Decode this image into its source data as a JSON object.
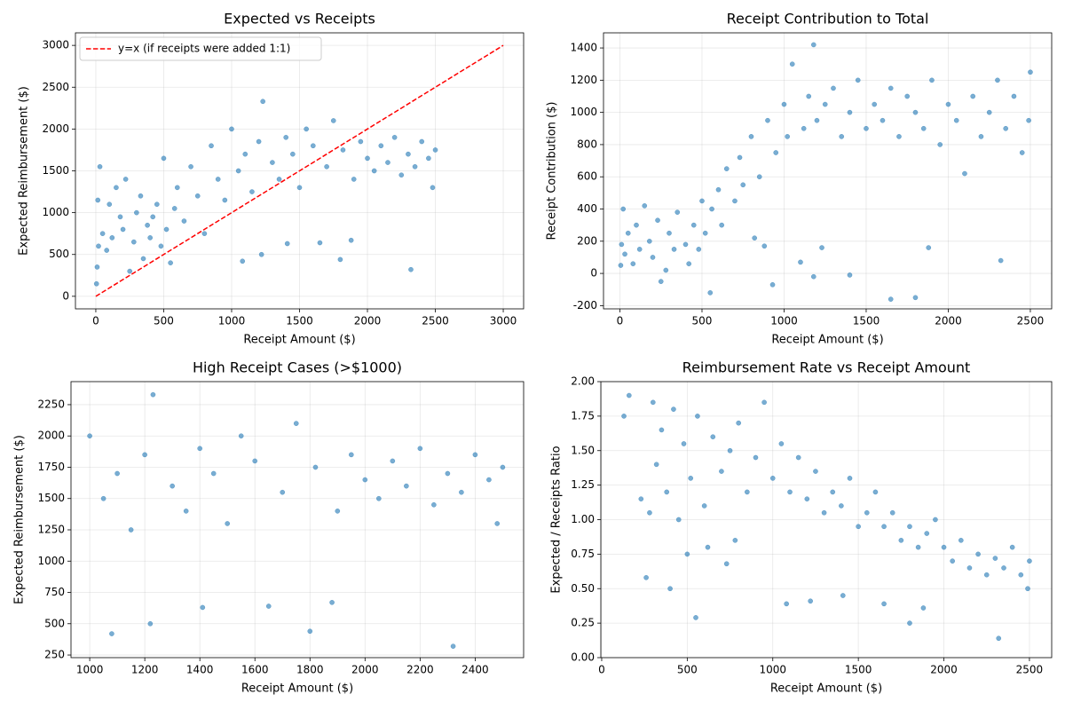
{
  "chart_data": [
    {
      "type": "scatter",
      "title": "Expected vs Receipts",
      "xlabel": "Receipt Amount ($)",
      "ylabel": "Expected Reimbursement ($)",
      "color": "#1f77b4",
      "x": [
        5,
        10,
        15,
        20,
        30,
        50,
        80,
        100,
        120,
        150,
        180,
        200,
        220,
        250,
        280,
        300,
        330,
        350,
        380,
        400,
        420,
        450,
        480,
        500,
        520,
        550,
        580,
        600,
        650,
        700,
        750,
        800,
        850,
        900,
        950,
        1000,
        1050,
        1080,
        1100,
        1150,
        1200,
        1220,
        1230,
        1300,
        1350,
        1400,
        1410,
        1450,
        1500,
        1550,
        1600,
        1650,
        1700,
        1750,
        1800,
        1820,
        1880,
        1900,
        1950,
        2000,
        2050,
        2100,
        2150,
        2200,
        2250,
        2300,
        2320,
        2350,
        2400,
        2450,
        2500,
        2480
      ],
      "values": [
        150,
        350,
        1150,
        600,
        1550,
        750,
        550,
        1100,
        700,
        1300,
        950,
        800,
        1400,
        300,
        650,
        1000,
        1200,
        450,
        850,
        700,
        950,
        1100,
        600,
        1650,
        800,
        400,
        1050,
        1300,
        900,
        1550,
        1200,
        750,
        1800,
        1400,
        1150,
        2000,
        1500,
        420,
        1700,
        1250,
        1850,
        500,
        2330,
        1600,
        1400,
        1900,
        630,
        1700,
        1300,
        2000,
        1800,
        640,
        1550,
        2100,
        440,
        1750,
        670,
        1400,
        1850,
        1650,
        1500,
        1800,
        1600,
        1900,
        1450,
        1700,
        320,
        1550,
        1850,
        1650,
        1750,
        1300
      ],
      "series": [
        {
          "name": "y=x (if receipts were added 1:1)",
          "type": "line",
          "color": "#ff0000",
          "dashed": true,
          "x": [
            0,
            3000
          ],
          "values": [
            0,
            3000
          ]
        }
      ],
      "legend": "upper left",
      "xlim": [
        -150,
        3150
      ],
      "ylim": [
        -150,
        3150
      ],
      "xticks": [
        0,
        500,
        1000,
        1500,
        2000,
        2500,
        3000
      ],
      "yticks": [
        0,
        500,
        1000,
        1500,
        2000,
        2500,
        3000
      ],
      "grid": true
    },
    {
      "type": "scatter",
      "title": "Receipt Contribution to Total",
      "xlabel": "Receipt Amount ($)",
      "ylabel": "Receipt Contribution ($)",
      "color": "#1f77b4",
      "x": [
        5,
        10,
        20,
        30,
        50,
        80,
        100,
        120,
        150,
        180,
        200,
        230,
        250,
        280,
        300,
        330,
        350,
        400,
        420,
        450,
        480,
        500,
        520,
        550,
        560,
        600,
        620,
        650,
        700,
        730,
        750,
        800,
        820,
        850,
        880,
        900,
        930,
        950,
        1000,
        1020,
        1050,
        1100,
        1120,
        1150,
        1180,
        1180,
        1200,
        1230,
        1250,
        1300,
        1350,
        1400,
        1400,
        1450,
        1500,
        1550,
        1600,
        1650,
        1650,
        1700,
        1750,
        1800,
        1800,
        1850,
        1880,
        1900,
        1950,
        2000,
        2050,
        2100,
        2150,
        2200,
        2250,
        2300,
        2320,
        2350,
        2400,
        2450,
        2500,
        2490
      ],
      "values": [
        50,
        180,
        400,
        120,
        250,
        60,
        300,
        150,
        420,
        200,
        100,
        330,
        -50,
        20,
        250,
        150,
        380,
        180,
        60,
        300,
        150,
        450,
        250,
        -120,
        400,
        520,
        300,
        650,
        450,
        720,
        550,
        850,
        220,
        600,
        170,
        950,
        -70,
        750,
        1050,
        850,
        1300,
        70,
        900,
        1100,
        1420,
        -20,
        950,
        160,
        1050,
        1150,
        850,
        1000,
        -10,
        1200,
        900,
        1050,
        950,
        -160,
        1150,
        850,
        1100,
        -150,
        1000,
        900,
        160,
        1200,
        800,
        1050,
        950,
        620,
        1100,
        850,
        1000,
        1200,
        80,
        900,
        1100,
        750,
        1250,
        950
      ],
      "xlim": [
        -100,
        2630
      ],
      "ylim": [
        -220,
        1494
      ],
      "xticks": [
        0,
        500,
        1000,
        1500,
        2000,
        2500
      ],
      "yticks": [
        -200,
        0,
        200,
        400,
        600,
        800,
        1000,
        1200,
        1400
      ],
      "grid": true
    },
    {
      "type": "scatter",
      "title": "High Receipt Cases (>$1000)",
      "xlabel": "Receipt Amount ($)",
      "ylabel": "Expected Reimbursement ($)",
      "color": "#1f77b4",
      "x": [
        1000,
        1050,
        1080,
        1100,
        1150,
        1200,
        1220,
        1230,
        1300,
        1350,
        1400,
        1410,
        1450,
        1500,
        1550,
        1600,
        1650,
        1700,
        1750,
        1800,
        1820,
        1880,
        1900,
        1950,
        2000,
        2050,
        2100,
        2150,
        2200,
        2250,
        2300,
        2320,
        2350,
        2400,
        2450,
        2500,
        2480
      ],
      "values": [
        2000,
        1500,
        420,
        1700,
        1250,
        1850,
        500,
        2330,
        1600,
        1400,
        1900,
        630,
        1700,
        1300,
        2000,
        1800,
        640,
        1550,
        2100,
        440,
        1750,
        670,
        1400,
        1850,
        1650,
        1500,
        1800,
        1600,
        1900,
        1450,
        1700,
        320,
        1550,
        1850,
        1650,
        1750,
        1300
      ],
      "xlim": [
        932,
        2576
      ],
      "ylim": [
        229,
        2434
      ],
      "xticks": [
        1000,
        1200,
        1400,
        1600,
        1800,
        2000,
        2200,
        2400
      ],
      "yticks": [
        250,
        500,
        750,
        1000,
        1250,
        1500,
        1750,
        2000,
        2250
      ],
      "grid": true
    },
    {
      "type": "scatter",
      "title": "Reimbursement Rate vs Receipt Amount",
      "xlabel": "Receipt Amount ($)",
      "ylabel": "Expected / Receipts Ratio",
      "color": "#1f77b4",
      "x": [
        130,
        160,
        230,
        260,
        280,
        300,
        320,
        350,
        380,
        400,
        420,
        450,
        480,
        500,
        520,
        550,
        560,
        600,
        620,
        650,
        700,
        730,
        750,
        780,
        800,
        850,
        900,
        950,
        1000,
        1050,
        1080,
        1100,
        1150,
        1200,
        1220,
        1250,
        1300,
        1350,
        1400,
        1410,
        1450,
        1500,
        1550,
        1600,
        1650,
        1650,
        1700,
        1750,
        1800,
        1800,
        1850,
        1880,
        1900,
        1950,
        2000,
        2050,
        2100,
        2150,
        2200,
        2250,
        2300,
        2320,
        2350,
        2400,
        2450,
        2500,
        2490
      ],
      "values": [
        1.75,
        1.9,
        1.15,
        0.58,
        1.05,
        1.85,
        1.4,
        1.65,
        1.2,
        0.5,
        1.8,
        1.0,
        1.55,
        0.75,
        1.3,
        0.29,
        1.75,
        1.1,
        0.8,
        1.6,
        1.35,
        0.68,
        1.5,
        0.85,
        1.7,
        1.2,
        1.45,
        1.85,
        1.3,
        1.55,
        0.39,
        1.2,
        1.45,
        1.15,
        0.41,
        1.35,
        1.05,
        1.2,
        1.1,
        0.45,
        1.3,
        0.95,
        1.05,
        1.2,
        0.39,
        0.95,
        1.05,
        0.85,
        0.25,
        0.95,
        0.8,
        0.36,
        0.9,
        1.0,
        0.8,
        0.7,
        0.85,
        0.65,
        0.75,
        0.6,
        0.72,
        0.14,
        0.65,
        0.8,
        0.6,
        0.7,
        0.5
      ],
      "xlim": [
        -5,
        2630
      ],
      "ylim": [
        0,
        2
      ],
      "xticks": [
        0,
        500,
        1000,
        1500,
        2000,
        2500
      ],
      "yticks": [
        {
          "value": 0,
          "label": "0.00"
        },
        {
          "value": 0.25,
          "label": "0.25"
        },
        {
          "value": 0.5,
          "label": "0.50"
        },
        {
          "value": 0.75,
          "label": "0.75"
        },
        {
          "value": 1,
          "label": "1.00"
        },
        {
          "value": 1.25,
          "label": "1.25"
        },
        {
          "value": 1.5,
          "label": "1.50"
        },
        {
          "value": 1.75,
          "label": "1.75"
        },
        {
          "value": 2,
          "label": "2.00"
        }
      ],
      "grid": true
    }
  ]
}
